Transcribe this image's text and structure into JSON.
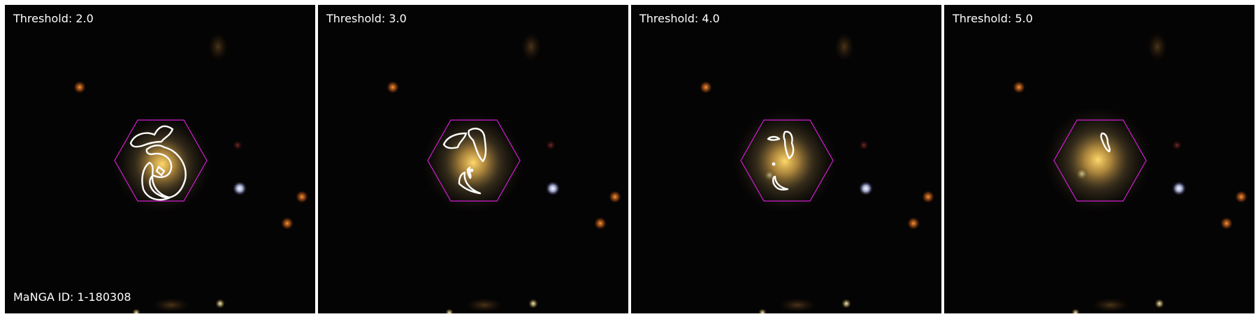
{
  "panels": [
    {
      "threshold_label": "Threshold: 2.0"
    },
    {
      "threshold_label": "Threshold: 3.0"
    },
    {
      "threshold_label": "Threshold: 4.0"
    },
    {
      "threshold_label": "Threshold: 5.0"
    }
  ],
  "manga_id_label": "MaNGA ID: 1-180308",
  "colors": {
    "background": "#050404",
    "hexagon": "#d21ed2",
    "contour": "#ffffff",
    "galaxy_core": "#f3c35a"
  }
}
